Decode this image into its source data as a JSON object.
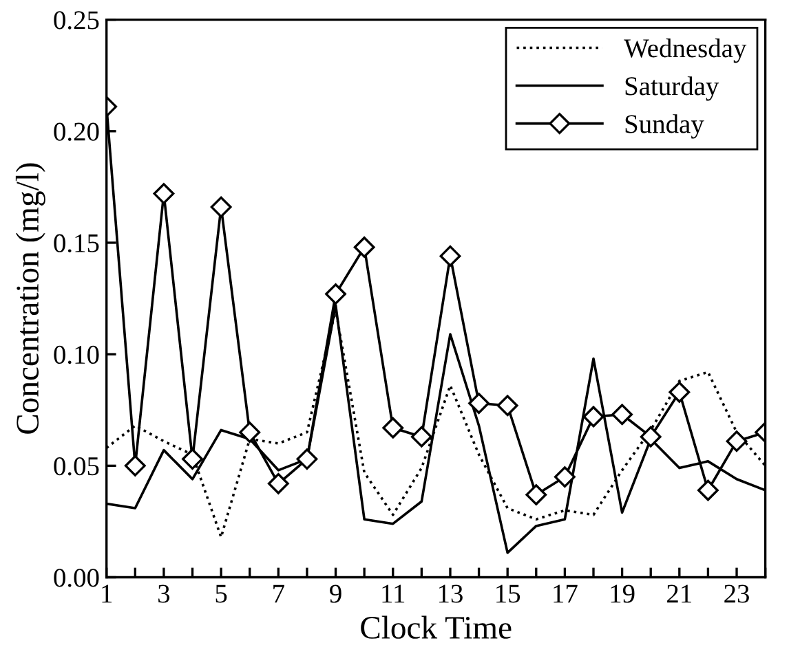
{
  "chart_data": {
    "type": "line",
    "xlabel": "Clock Time",
    "ylabel": "Concentration (mg/l)",
    "x": [
      1,
      2,
      3,
      4,
      5,
      6,
      7,
      8,
      9,
      10,
      11,
      12,
      13,
      14,
      15,
      16,
      17,
      18,
      19,
      20,
      21,
      22,
      23,
      24
    ],
    "xlim": [
      1,
      24
    ],
    "xticks": [
      1,
      {
        "value": 2,
        "label": null
      },
      3,
      {
        "value": 4,
        "label": null
      },
      5,
      {
        "value": 6,
        "label": null
      },
      7,
      {
        "value": 8,
        "label": null
      },
      9,
      {
        "value": 10,
        "label": null
      },
      11,
      {
        "value": 12,
        "label": null
      },
      13,
      {
        "value": 14,
        "label": null
      },
      15,
      {
        "value": 16,
        "label": null
      },
      17,
      {
        "value": 18,
        "label": null
      },
      19,
      {
        "value": 20,
        "label": null
      },
      21,
      {
        "value": 22,
        "label": null
      },
      23,
      {
        "value": 24,
        "label": null
      }
    ],
    "ylim": [
      0,
      0.25
    ],
    "yticks": [
      {
        "value": 0,
        "label": "0.00"
      },
      {
        "value": 0.05,
        "label": "0.05"
      },
      {
        "value": 0.1,
        "label": "0.10"
      },
      {
        "value": 0.15,
        "label": "0.15"
      },
      {
        "value": 0.2,
        "label": "0.20"
      },
      {
        "value": 0.25,
        "label": "0.25"
      }
    ],
    "grid": false,
    "legend": "top right",
    "series": [
      {
        "name": "Wednesday",
        "color": "#000000",
        "line_style": "dotted",
        "marker": "none",
        "values": [
          0.058,
          0.068,
          0.061,
          0.055,
          0.018,
          0.062,
          0.06,
          0.065,
          0.12,
          0.047,
          0.028,
          0.049,
          0.086,
          0.055,
          0.031,
          0.026,
          0.03,
          0.028,
          0.048,
          0.066,
          0.088,
          0.092,
          0.065,
          0.05
        ]
      },
      {
        "name": "Saturday",
        "color": "#000000",
        "line_style": "solid",
        "marker": "none",
        "values": [
          0.033,
          0.031,
          0.057,
          0.044,
          0.066,
          0.062,
          0.048,
          0.053,
          0.122,
          0.026,
          0.024,
          0.034,
          0.109,
          0.068,
          0.011,
          0.023,
          0.026,
          0.098,
          0.029,
          0.062,
          0.049,
          0.052,
          0.044,
          0.039
        ]
      },
      {
        "name": "Sunday",
        "color": "#000000",
        "line_style": "solid",
        "marker": "diamond",
        "values": [
          0.211,
          0.05,
          0.172,
          0.053,
          0.166,
          0.065,
          0.042,
          0.053,
          0.127,
          0.148,
          0.067,
          0.063,
          0.144,
          0.078,
          0.077,
          0.037,
          0.045,
          0.072,
          0.073,
          0.063,
          0.083,
          0.039,
          0.061,
          0.065
        ]
      }
    ]
  }
}
